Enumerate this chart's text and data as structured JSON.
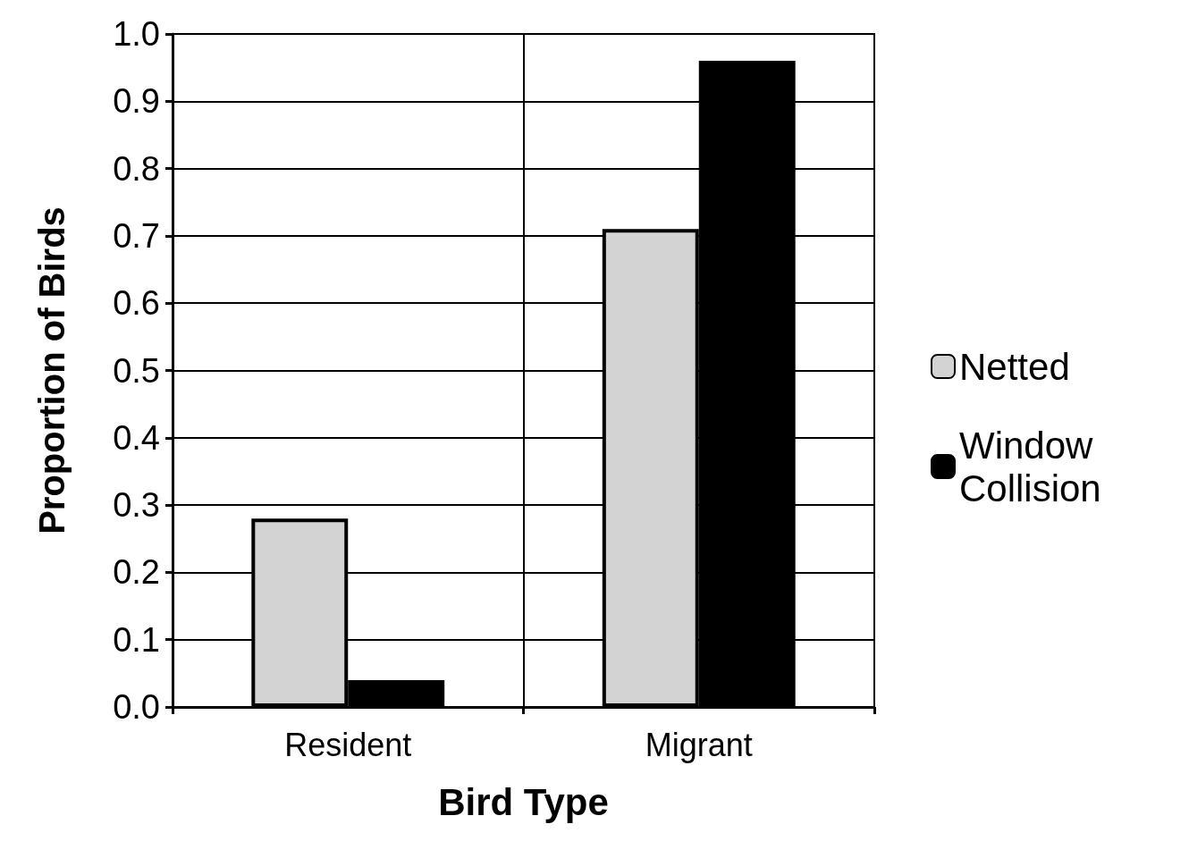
{
  "chart_data": {
    "type": "bar",
    "xlabel": "Bird Type",
    "ylabel": "Proportion of Birds",
    "categories": [
      "Resident",
      "Migrant"
    ],
    "series": [
      {
        "name": "Netted",
        "color": "#d3d3d3",
        "values": [
          0.28,
          0.71
        ]
      },
      {
        "name": "Window Collision",
        "color": "#000000",
        "values": [
          0.04,
          0.96
        ]
      }
    ],
    "ylim": [
      0,
      1
    ],
    "yticks": [
      {
        "value": 0,
        "label": "0.0"
      },
      0.1,
      0.2,
      0.3,
      0.4,
      0.5,
      0.6,
      0.7,
      0.8,
      0.9,
      {
        "value": 1,
        "label": "1.0"
      }
    ],
    "grid": true,
    "legend": "right"
  }
}
